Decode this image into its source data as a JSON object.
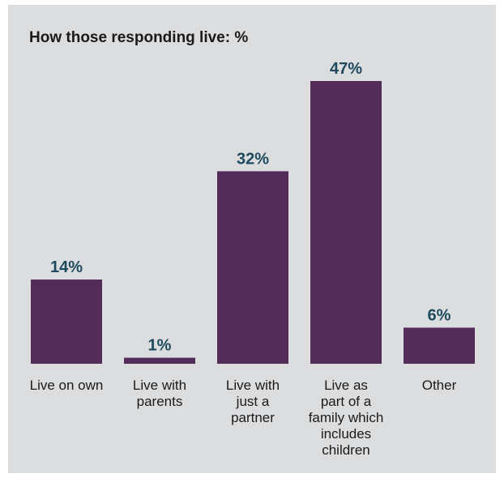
{
  "chart_data": {
    "type": "bar",
    "title": "How those responding live: %",
    "categories": [
      "Live on own",
      "Live with parents",
      "Live with just a partner",
      "Live as part of a family which includes children",
      "Other"
    ],
    "category_lines": [
      [
        "Live on own"
      ],
      [
        "Live with",
        "parents"
      ],
      [
        "Live with",
        "just a",
        "partner"
      ],
      [
        "Live as",
        "part of a",
        "family which",
        "includes",
        "children"
      ],
      [
        "Other"
      ]
    ],
    "values": [
      14,
      1,
      32,
      47,
      6
    ],
    "data_labels": [
      "14%",
      "1%",
      "32%",
      "47%",
      "6%"
    ],
    "ylim": [
      0,
      47
    ],
    "bar_color": "#532c5a",
    "label_color": "#1e4a5e",
    "background_color": "#dcdddf",
    "grid": false,
    "legend": "none"
  }
}
